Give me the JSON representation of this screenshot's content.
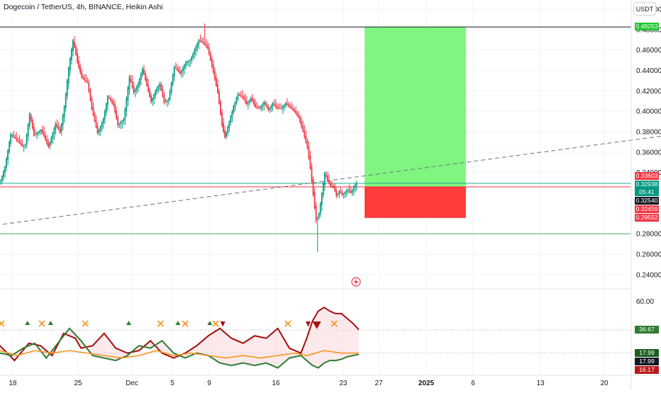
{
  "header": {
    "title": "Dogecoin / TetherUS, 4h, BINANCE, Heikin Ashi",
    "currency_button": "USDT"
  },
  "chart_data": [
    {
      "type": "candlestick",
      "title": "Dogecoin / TetherUS, 4h, BINANCE, Heikin Ashi",
      "x_tick_labels": [
        "18",
        "25",
        "Dec",
        "5",
        "9",
        "16",
        "23",
        "27",
        "2025",
        "6",
        "13",
        "20"
      ],
      "y_tick_labels": [
        "0.50000",
        "0.48000",
        "0.46000",
        "0.44000",
        "0.42000",
        "0.40000",
        "0.38000",
        "0.36000",
        "0.34000",
        "0.28000",
        "0.26000",
        "0.24000"
      ],
      "y_ticks": [
        0.5,
        0.48,
        0.46,
        0.44,
        0.42,
        0.4,
        0.38,
        0.36,
        0.34,
        0.28,
        0.26,
        0.24
      ],
      "ylim": [
        0.226,
        0.509
      ],
      "grid": true,
      "colors": {
        "up": "#089981",
        "down": "#f23645"
      },
      "price_path": [
        [
          0,
          0.332
        ],
        [
          3,
          0.346
        ],
        [
          7,
          0.378
        ],
        [
          11,
          0.372
        ],
        [
          15,
          0.366
        ],
        [
          17,
          0.367
        ],
        [
          20,
          0.398
        ],
        [
          23,
          0.376
        ],
        [
          28,
          0.382
        ],
        [
          31,
          0.372
        ],
        [
          33,
          0.365
        ],
        [
          38,
          0.388
        ],
        [
          41,
          0.379
        ],
        [
          44,
          0.405
        ],
        [
          47,
          0.443
        ],
        [
          50,
          0.47
        ],
        [
          53,
          0.448
        ],
        [
          56,
          0.433
        ],
        [
          60,
          0.428
        ],
        [
          63,
          0.402
        ],
        [
          67,
          0.378
        ],
        [
          71,
          0.393
        ],
        [
          74,
          0.415
        ],
        [
          78,
          0.406
        ],
        [
          81,
          0.386
        ],
        [
          85,
          0.392
        ],
        [
          89,
          0.434
        ],
        [
          92,
          0.418
        ],
        [
          95,
          0.427
        ],
        [
          98,
          0.442
        ],
        [
          101,
          0.425
        ],
        [
          104,
          0.409
        ],
        [
          107,
          0.42
        ],
        [
          110,
          0.427
        ],
        [
          113,
          0.408
        ],
        [
          116,
          0.412
        ],
        [
          120,
          0.444
        ],
        [
          124,
          0.437
        ],
        [
          128,
          0.448
        ],
        [
          131,
          0.45
        ],
        [
          134,
          0.46
        ],
        [
          137,
          0.47
        ],
        [
          140,
          0.467
        ],
        [
          143,
          0.462
        ],
        [
          147,
          0.438
        ],
        [
          150,
          0.418
        ],
        [
          153,
          0.386
        ],
        [
          155,
          0.374
        ],
        [
          158,
          0.39
        ],
        [
          161,
          0.405
        ],
        [
          164,
          0.417
        ],
        [
          167,
          0.414
        ],
        [
          170,
          0.407
        ],
        [
          173,
          0.413
        ],
        [
          176,
          0.404
        ],
        [
          179,
          0.403
        ],
        [
          182,
          0.409
        ],
        [
          185,
          0.401
        ],
        [
          188,
          0.408
        ],
        [
          191,
          0.403
        ],
        [
          194,
          0.403
        ],
        [
          197,
          0.408
        ],
        [
          200,
          0.404
        ],
        [
          203,
          0.4
        ],
        [
          206,
          0.394
        ],
        [
          209,
          0.38
        ],
        [
          212,
          0.364
        ],
        [
          214,
          0.344
        ],
        [
          216,
          0.318
        ],
        [
          218,
          0.292
        ],
        [
          220,
          0.3
        ],
        [
          222,
          0.32
        ],
        [
          224,
          0.34
        ],
        [
          226,
          0.332
        ],
        [
          228,
          0.326
        ],
        [
          230,
          0.327
        ],
        [
          232,
          0.317
        ],
        [
          234,
          0.322
        ],
        [
          236,
          0.318
        ],
        [
          238,
          0.321
        ],
        [
          240,
          0.323
        ],
        [
          242,
          0.32
        ],
        [
          244,
          0.326
        ],
        [
          246,
          0.33
        ]
      ],
      "lows": [
        [
          219,
          0.262
        ]
      ],
      "highs": [
        [
          141,
          0.486
        ]
      ],
      "horizontal_levels": [
        {
          "value": 0.48253,
          "color": "#131722"
        },
        {
          "value": 0.3294,
          "color": "#22ab94"
        },
        {
          "value": 0.326,
          "color": "#f23645"
        },
        {
          "value": 0.28,
          "color": "#4caf50"
        }
      ],
      "trendline": {
        "from": [
          -100,
          0.27
        ],
        "to": [
          480,
          0.38
        ],
        "color": "#787b86",
        "style": "dashed"
      },
      "position": {
        "x_range": [
          252,
          322
        ],
        "entry": 0.326,
        "target": 0.48253,
        "stop": 0.2955,
        "profit_color": "#80f580",
        "loss_color": "#ff3b3b"
      },
      "price_labels": [
        {
          "text": "0.48253",
          "value": 0.48253,
          "color": "#22c32e"
        },
        {
          "text": "0.33603",
          "value": 0.33603,
          "color": "#f23645"
        },
        {
          "text": "0.32938",
          "value": 0.32938,
          "color": "#089981",
          "sub": "05:41"
        },
        {
          "text": "0.32540",
          "value": 0.3254,
          "color": "#131722"
        },
        {
          "text": "0.32459",
          "value": 0.32459,
          "color": "#f23645"
        },
        {
          "text": "0.29552",
          "value": 0.29552,
          "color": "#f23645"
        }
      ]
    },
    {
      "type": "line",
      "title": "",
      "y_tick_labels": [
        "60.00"
      ],
      "y_ticks": [
        60
      ],
      "ylim": [
        0,
        70
      ],
      "reference_lines": [
        36.67,
        17.99
      ],
      "series": [
        {
          "color": "#a50e0e",
          "values": [
            [
              0,
              24
            ],
            [
              10,
              12
            ],
            [
              20,
              26
            ],
            [
              28,
              24
            ],
            [
              36,
              16
            ],
            [
              44,
              34
            ],
            [
              52,
              30
            ],
            [
              56,
              22
            ],
            [
              64,
              24
            ],
            [
              72,
              34
            ],
            [
              80,
              22
            ],
            [
              88,
              18
            ],
            [
              96,
              20
            ],
            [
              104,
              28
            ],
            [
              112,
              18
            ],
            [
              120,
              14
            ],
            [
              128,
              18
            ],
            [
              136,
              24
            ],
            [
              144,
              32
            ],
            [
              152,
              38
            ],
            [
              160,
              30
            ],
            [
              168,
              26
            ],
            [
              176,
              32
            ],
            [
              184,
              30
            ],
            [
              192,
              38
            ],
            [
              200,
              22
            ],
            [
              208,
              18
            ],
            [
              212,
              30
            ],
            [
              216,
              44
            ],
            [
              220,
              52
            ],
            [
              224,
              55
            ],
            [
              228,
              52
            ],
            [
              232,
              50
            ],
            [
              236,
              50
            ],
            [
              240,
              46
            ],
            [
              244,
              42
            ],
            [
              248,
              37
            ]
          ]
        },
        {
          "color": "#2e7d32",
          "values": [
            [
              0,
              18
            ],
            [
              8,
              16
            ],
            [
              16,
              22
            ],
            [
              24,
              26
            ],
            [
              32,
              14
            ],
            [
              40,
              26
            ],
            [
              48,
              38
            ],
            [
              56,
              28
            ],
            [
              64,
              16
            ],
            [
              72,
              14
            ],
            [
              80,
              12
            ],
            [
              88,
              16
            ],
            [
              96,
              24
            ],
            [
              104,
              22
            ],
            [
              112,
              28
            ],
            [
              120,
              18
            ],
            [
              128,
              14
            ],
            [
              136,
              18
            ],
            [
              144,
              16
            ],
            [
              152,
              10
            ],
            [
              160,
              8
            ],
            [
              168,
              10
            ],
            [
              176,
              8
            ],
            [
              184,
              10
            ],
            [
              192,
              6
            ],
            [
              200,
              14
            ],
            [
              208,
              16
            ],
            [
              212,
              12
            ],
            [
              216,
              8
            ],
            [
              220,
              6
            ],
            [
              224,
              10
            ],
            [
              228,
              12
            ],
            [
              232,
              12
            ],
            [
              236,
              13
            ],
            [
              240,
              15
            ],
            [
              244,
              16
            ],
            [
              248,
              17
            ]
          ]
        },
        {
          "color": "#f7931a",
          "values": [
            [
              0,
              20
            ],
            [
              12,
              16
            ],
            [
              24,
              20
            ],
            [
              36,
              18
            ],
            [
              48,
              20
            ],
            [
              60,
              18
            ],
            [
              72,
              16
            ],
            [
              84,
              14
            ],
            [
              96,
              16
            ],
            [
              108,
              20
            ],
            [
              120,
              16
            ],
            [
              132,
              18
            ],
            [
              144,
              16
            ],
            [
              156,
              14
            ],
            [
              168,
              16
            ],
            [
              180,
              14
            ],
            [
              192,
              16
            ],
            [
              204,
              18
            ],
            [
              212,
              16
            ],
            [
              224,
              20
            ],
            [
              236,
              18
            ],
            [
              248,
              18
            ]
          ]
        }
      ],
      "price_labels": [
        {
          "text": "36.67",
          "value": 36.67,
          "color": "#2e7d32"
        },
        {
          "text": "17.99",
          "value": 17.99,
          "color": "#1b5e20"
        },
        {
          "text": "17.99",
          "value": 17.99,
          "color": "#131722"
        },
        {
          "text": "16.17",
          "value": 16.17,
          "color": "#b71c1c"
        }
      ],
      "markers": [
        {
          "x": 0,
          "symbol": "x",
          "color": "#f7931a"
        },
        {
          "x": 18,
          "symbol": "up",
          "color": "#2e7d32"
        },
        {
          "x": 28,
          "symbol": "x",
          "color": "#f7931a"
        },
        {
          "x": 34,
          "symbol": "up",
          "color": "#2e7d32"
        },
        {
          "x": 58,
          "symbol": "x",
          "color": "#f7931a"
        },
        {
          "x": 88,
          "symbol": "up",
          "color": "#2e7d32"
        },
        {
          "x": 110,
          "symbol": "x",
          "color": "#f7931a"
        },
        {
          "x": 122,
          "symbol": "up",
          "color": "#2e7d32"
        },
        {
          "x": 127,
          "symbol": "x",
          "color": "#f7931a"
        },
        {
          "x": 144,
          "symbol": "up",
          "color": "#2e7d32"
        },
        {
          "x": 148,
          "symbol": "x",
          "color": "#f7931a"
        },
        {
          "x": 153,
          "symbol": "down",
          "color": "#a50e0e"
        },
        {
          "x": 198,
          "symbol": "x",
          "color": "#f7931a"
        },
        {
          "x": 212,
          "symbol": "down",
          "color": "#a50e0e"
        },
        {
          "x": 218,
          "symbol": "down",
          "color": "#a50e0e",
          "big": true
        },
        {
          "x": 230,
          "symbol": "x",
          "color": "#f7931a"
        }
      ]
    }
  ]
}
